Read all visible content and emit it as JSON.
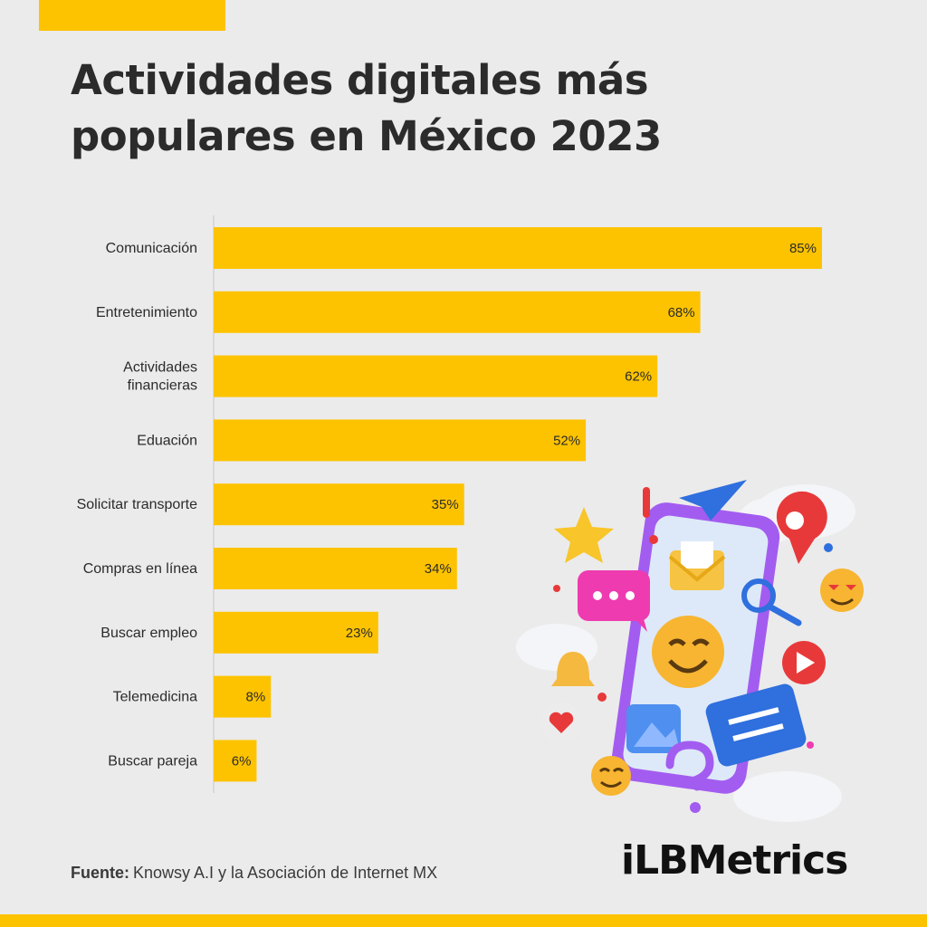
{
  "title": "Actividades digitales más populares en México 2023",
  "source": {
    "label": "Fuente:",
    "text": "Knowsy A.I y la Asociación de Internet MX"
  },
  "logo": "iLBMetrics",
  "colors": {
    "bar": "#fdc300",
    "background": "#ebebeb",
    "text": "#2b2b2b"
  },
  "chart_data": {
    "type": "bar",
    "orientation": "horizontal",
    "categories": [
      "Comunicación",
      "Entretenimiento",
      "Actividades financieras",
      "Eduación",
      "Solicitar transporte",
      "Compras en línea",
      "Buscar empleo",
      "Telemedicina",
      "Buscar pareja"
    ],
    "category_lines": [
      [
        "Comunicación"
      ],
      [
        "Entretenimiento"
      ],
      [
        "Actividades",
        "financieras"
      ],
      [
        "Eduación"
      ],
      [
        "Solicitar transporte"
      ],
      [
        "Compras en línea"
      ],
      [
        "Buscar empleo"
      ],
      [
        "Telemedicina"
      ],
      [
        "Buscar pareja"
      ]
    ],
    "values": [
      85,
      68,
      62,
      52,
      35,
      34,
      23,
      8,
      6
    ],
    "value_labels": [
      "85%",
      "68%",
      "62%",
      "52%",
      "35%",
      "34%",
      "23%",
      "8%",
      "6%"
    ],
    "xlim": [
      0,
      100
    ],
    "grid": false,
    "legend": "none"
  },
  "illustration": {
    "icons": [
      "star-icon",
      "paper-plane-icon",
      "location-pin-icon",
      "envelope-icon",
      "chat-bubble-icon",
      "smile-emoji-icon",
      "heart-eyes-emoji-icon",
      "magnifier-icon",
      "bell-icon",
      "play-icon",
      "image-icon",
      "message-icon",
      "heart-icon",
      "question-icon",
      "exclamation-icon",
      "cloud-icon"
    ]
  }
}
